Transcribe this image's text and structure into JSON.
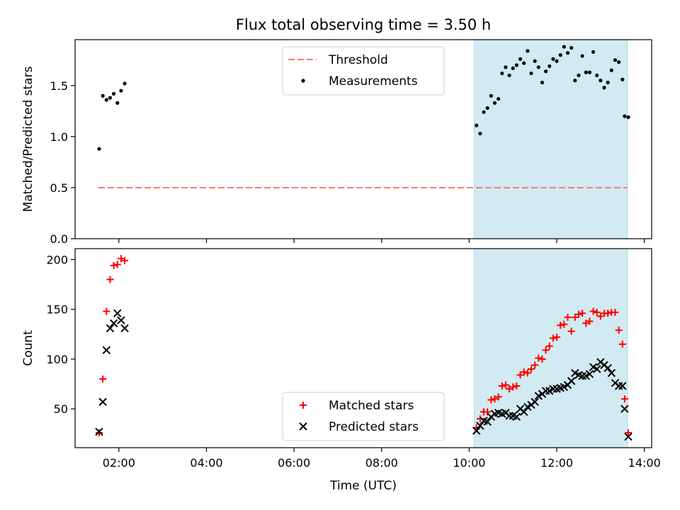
{
  "title": "Flux total observing time = 3.50 h",
  "colors": {
    "threshold": "#f47a7a",
    "measurements": "#000000",
    "matched": "#ff0000",
    "predicted": "#000000",
    "shade": "#add8e6"
  },
  "chart_data": [
    {
      "type": "scatter",
      "ylabel": "Matched/Predicted stars",
      "ylim": [
        0,
        1.95
      ],
      "xlim": [
        "01:00",
        "14:10"
      ],
      "yticks": [
        "0.0",
        "0.5",
        "1.0",
        "1.5"
      ],
      "shaded_interval": [
        "10:07",
        "13:37"
      ],
      "legend_placement": "upper center",
      "legend": [
        "Threshold",
        "Measurements"
      ],
      "threshold": {
        "name": "Threshold",
        "value": 0.5,
        "x_range": [
          "01:32",
          "13:37"
        ],
        "style": "dashed"
      },
      "series": [
        {
          "name": "Measurements",
          "points": [
            [
              "01:33",
              0.88
            ],
            [
              "01:38",
              1.4
            ],
            [
              "01:43",
              1.36
            ],
            [
              "01:48",
              1.38
            ],
            [
              "01:53",
              1.42
            ],
            [
              "01:58",
              1.33
            ],
            [
              "02:03",
              1.45
            ],
            [
              "02:08",
              1.52
            ],
            [
              "10:10",
              1.11
            ],
            [
              "10:15",
              1.03
            ],
            [
              "10:20",
              1.24
            ],
            [
              "10:25",
              1.28
            ],
            [
              "10:30",
              1.4
            ],
            [
              "10:35",
              1.33
            ],
            [
              "10:40",
              1.37
            ],
            [
              "10:45",
              1.62
            ],
            [
              "10:50",
              1.68
            ],
            [
              "10:55",
              1.6
            ],
            [
              "11:00",
              1.67
            ],
            [
              "11:05",
              1.7
            ],
            [
              "11:10",
              1.76
            ],
            [
              "11:15",
              1.72
            ],
            [
              "11:20",
              1.84
            ],
            [
              "11:25",
              1.62
            ],
            [
              "11:30",
              1.74
            ],
            [
              "11:35",
              1.68
            ],
            [
              "11:40",
              1.53
            ],
            [
              "11:45",
              1.64
            ],
            [
              "11:50",
              1.69
            ],
            [
              "11:55",
              1.76
            ],
            [
              "12:00",
              1.74
            ],
            [
              "12:05",
              1.8
            ],
            [
              "12:10",
              1.88
            ],
            [
              "12:15",
              1.82
            ],
            [
              "12:20",
              1.87
            ],
            [
              "12:25",
              1.55
            ],
            [
              "12:30",
              1.6
            ],
            [
              "12:35",
              1.79
            ],
            [
              "12:40",
              1.63
            ],
            [
              "12:45",
              1.63
            ],
            [
              "12:50",
              1.83
            ],
            [
              "12:55",
              1.6
            ],
            [
              "13:00",
              1.55
            ],
            [
              "13:05",
              1.48
            ],
            [
              "13:10",
              1.53
            ],
            [
              "13:15",
              1.65
            ],
            [
              "13:20",
              1.75
            ],
            [
              "13:25",
              1.73
            ],
            [
              "13:30",
              1.56
            ],
            [
              "13:33",
              1.2
            ],
            [
              "13:38",
              1.19
            ]
          ]
        }
      ]
    },
    {
      "type": "scatter",
      "xlabel": "Time (UTC)",
      "ylabel": "Count",
      "ylim": [
        11,
        211
      ],
      "xlim": [
        "01:00",
        "14:10"
      ],
      "xticks": [
        "02:00",
        "04:00",
        "06:00",
        "08:00",
        "10:00",
        "12:00",
        "14:00"
      ],
      "yticks": [
        "50",
        "100",
        "150",
        "200"
      ],
      "shaded_interval": [
        "10:07",
        "13:37"
      ],
      "legend_placement": "lower center",
      "legend": [
        "Matched stars",
        "Predicted stars"
      ],
      "series": [
        {
          "name": "Matched stars",
          "marker": "+",
          "points": [
            [
              "01:33",
              26
            ],
            [
              "01:38",
              80
            ],
            [
              "01:43",
              148
            ],
            [
              "01:48",
              180
            ],
            [
              "01:53",
              194
            ],
            [
              "01:58",
              195
            ],
            [
              "02:03",
              201
            ],
            [
              "02:08",
              199
            ],
            [
              "10:10",
              31
            ],
            [
              "10:15",
              40
            ],
            [
              "10:20",
              47
            ],
            [
              "10:25",
              47
            ],
            [
              "10:30",
              59
            ],
            [
              "10:35",
              60
            ],
            [
              "10:40",
              62
            ],
            [
              "10:45",
              73
            ],
            [
              "10:50",
              74
            ],
            [
              "10:55",
              70
            ],
            [
              "11:00",
              72
            ],
            [
              "11:05",
              73
            ],
            [
              "11:10",
              84
            ],
            [
              "11:15",
              87
            ],
            [
              "11:20",
              86
            ],
            [
              "11:25",
              90
            ],
            [
              "11:30",
              94
            ],
            [
              "11:35",
              101
            ],
            [
              "11:40",
              100
            ],
            [
              "11:45",
              109
            ],
            [
              "11:50",
              113
            ],
            [
              "11:55",
              121
            ],
            [
              "12:00",
              122
            ],
            [
              "12:05",
              134
            ],
            [
              "12:10",
              135
            ],
            [
              "12:15",
              142
            ],
            [
              "12:20",
              128
            ],
            [
              "12:25",
              142
            ],
            [
              "12:30",
              145
            ],
            [
              "12:35",
              146
            ],
            [
              "12:40",
              136
            ],
            [
              "12:45",
              138
            ],
            [
              "12:50",
              148
            ],
            [
              "12:55",
              147
            ],
            [
              "13:00",
              143
            ],
            [
              "13:05",
              146
            ],
            [
              "13:10",
              146
            ],
            [
              "13:15",
              147
            ],
            [
              "13:20",
              147
            ],
            [
              "13:25",
              129
            ],
            [
              "13:30",
              115
            ],
            [
              "13:33",
              60
            ],
            [
              "13:38",
              26
            ]
          ]
        },
        {
          "name": "Predicted stars",
          "marker": "x",
          "points": [
            [
              "01:33",
              27
            ],
            [
              "01:38",
              57
            ],
            [
              "01:43",
              109
            ],
            [
              "01:48",
              131
            ],
            [
              "01:53",
              136
            ],
            [
              "01:58",
              146
            ],
            [
              "02:03",
              139
            ],
            [
              "02:08",
              131
            ],
            [
              "10:10",
              28
            ],
            [
              "10:15",
              33
            ],
            [
              "10:20",
              38
            ],
            [
              "10:25",
              37
            ],
            [
              "10:30",
              42
            ],
            [
              "10:35",
              45
            ],
            [
              "10:40",
              46
            ],
            [
              "10:45",
              45
            ],
            [
              "10:50",
              46
            ],
            [
              "10:55",
              43
            ],
            [
              "11:00",
              43
            ],
            [
              "11:05",
              42
            ],
            [
              "11:10",
              50
            ],
            [
              "11:15",
              47
            ],
            [
              "11:20",
              52
            ],
            [
              "11:25",
              54
            ],
            [
              "11:30",
              57
            ],
            [
              "11:35",
              63
            ],
            [
              "11:40",
              65
            ],
            [
              "11:45",
              68
            ],
            [
              "11:50",
              68
            ],
            [
              "11:55",
              70
            ],
            [
              "12:00",
              70
            ],
            [
              "12:05",
              71
            ],
            [
              "12:10",
              72
            ],
            [
              "12:15",
              74
            ],
            [
              "12:20",
              78
            ],
            [
              "12:25",
              86
            ],
            [
              "12:30",
              84
            ],
            [
              "12:35",
              83
            ],
            [
              "12:40",
              83
            ],
            [
              "12:45",
              85
            ],
            [
              "12:50",
              92
            ],
            [
              "12:55",
              90
            ],
            [
              "13:00",
              97
            ],
            [
              "13:05",
              94
            ],
            [
              "13:10",
              91
            ],
            [
              "13:15",
              86
            ],
            [
              "13:20",
              76
            ],
            [
              "13:25",
              73
            ],
            [
              "13:30",
              73
            ],
            [
              "13:33",
              50
            ],
            [
              "13:38",
              22
            ]
          ]
        }
      ]
    }
  ]
}
